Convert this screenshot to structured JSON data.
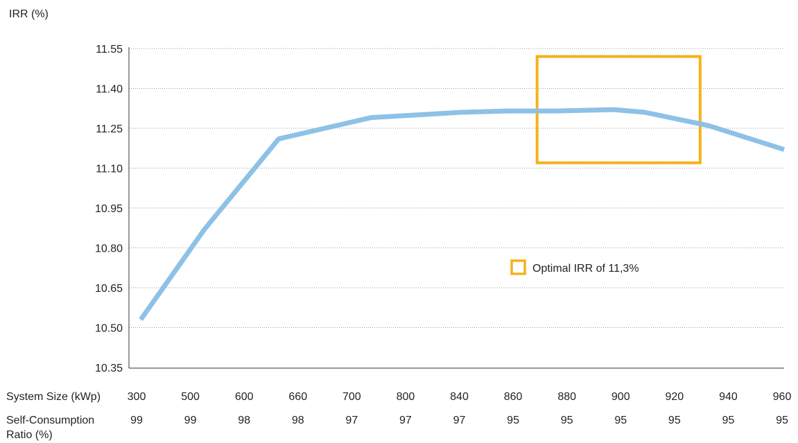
{
  "chart_data": {
    "type": "line",
    "ylabel": "IRR (%)",
    "y_ticks": [
      "11.55",
      "11.40",
      "11.25",
      "11.10",
      "10.95",
      "10.80",
      "10.65",
      "10.50",
      "10.35"
    ],
    "ylim": [
      10.35,
      11.55
    ],
    "grid": true,
    "row_labels": {
      "system_size": "System Size (kWp)",
      "self_consumption_line1": "Self-Consumption",
      "self_consumption_line2": "Ratio (%)"
    },
    "categories": [
      "300",
      "500",
      "600",
      "660",
      "700",
      "800",
      "840",
      "860",
      "880",
      "900",
      "920",
      "940",
      "960"
    ],
    "self_consumption": [
      "99",
      "99",
      "98",
      "98",
      "97",
      "97",
      "97",
      "95",
      "95",
      "95",
      "95",
      "95",
      "95"
    ],
    "series": [
      {
        "x": [
          300,
          500,
          600,
          660,
          700,
          800,
          840,
          860,
          880,
          900,
          920,
          940,
          960
        ],
        "values": [
          10.53,
          10.87,
          11.21,
          11.26,
          11.29,
          11.3,
          11.31,
          11.315,
          11.315,
          11.32,
          11.31,
          11.26,
          11.17
        ],
        "color": "#8ec1e6"
      }
    ],
    "highlight": {
      "x_range": [
        880,
        920
      ],
      "y_range": [
        11.12,
        11.52
      ],
      "color": "#f5b21b"
    },
    "legend": {
      "label": "Optimal IRR of 11,3%",
      "placement": "center-right"
    }
  }
}
